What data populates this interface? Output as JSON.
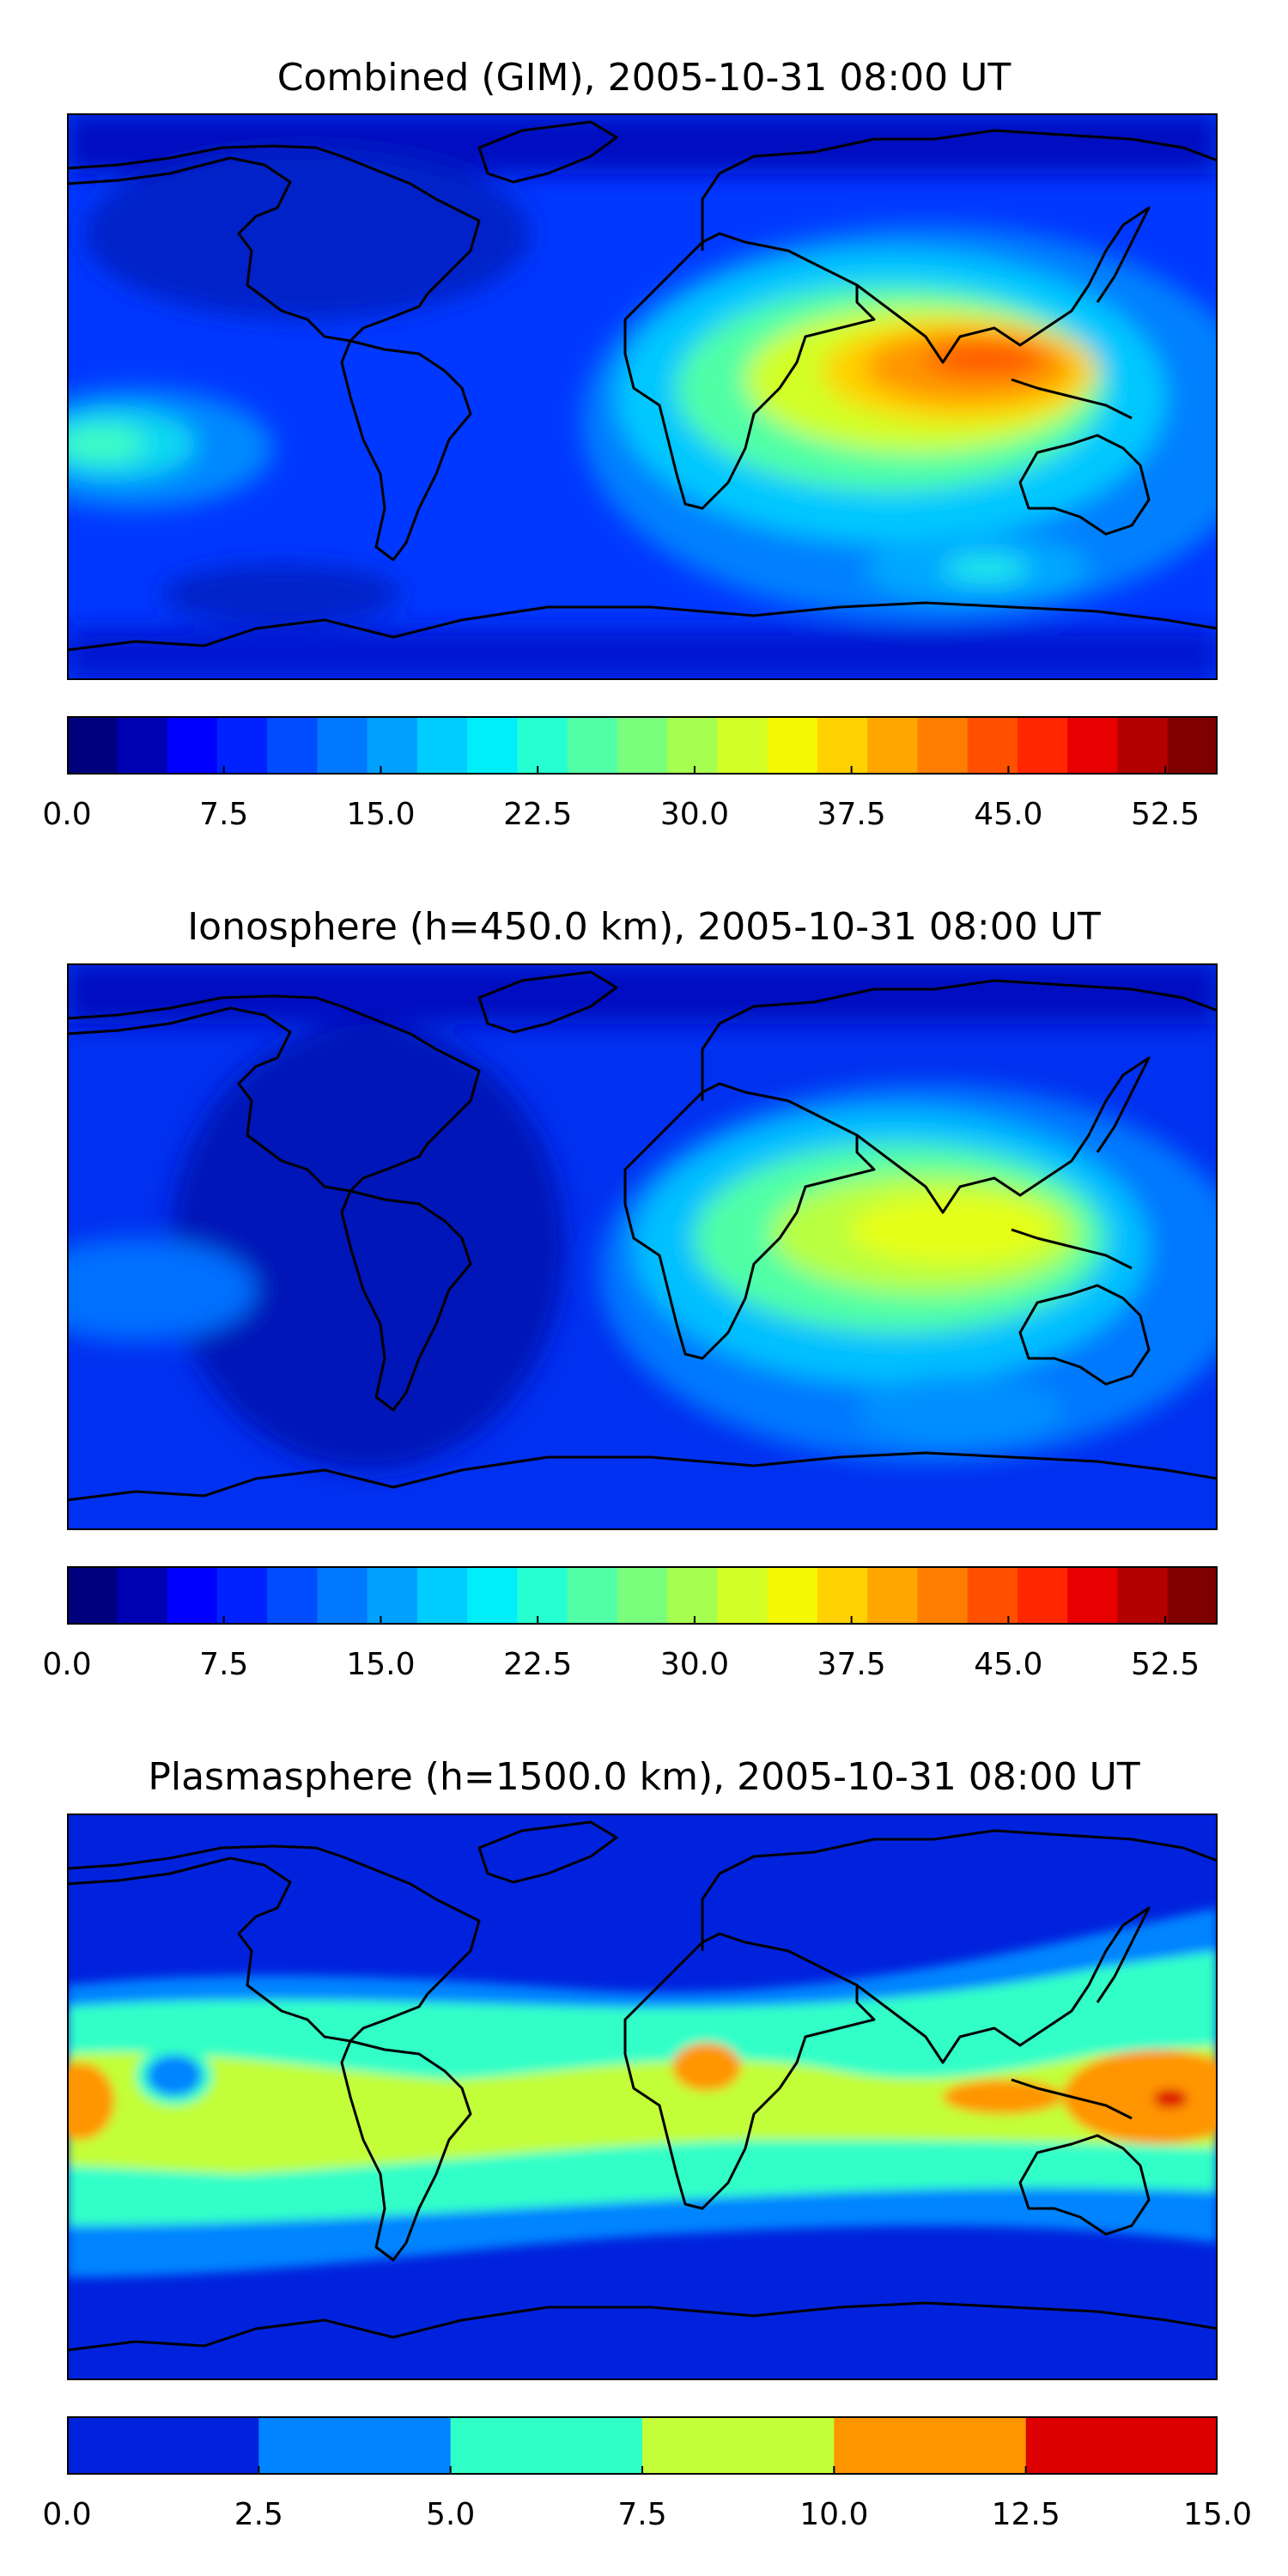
{
  "panels": [
    {
      "title": "Combined (GIM), 2005-10-31 08:00 UT",
      "colorbar": {
        "colors": [
          "#00007f",
          "#0000b3",
          "#0000ff",
          "#0022ff",
          "#004cff",
          "#0078ff",
          "#00a0ff",
          "#00ccff",
          "#00eefa",
          "#26ffd1",
          "#50ffa6",
          "#7aff7d",
          "#a6ff50",
          "#d1ff26",
          "#f4f802",
          "#ffd100",
          "#ffa600",
          "#ff7d00",
          "#ff5000",
          "#ff2600",
          "#e60000",
          "#b30000",
          "#800000"
        ],
        "ticks": [
          "0.0",
          "7.5",
          "15.0",
          "22.5",
          "30.0",
          "37.5",
          "45.0",
          "52.5"
        ],
        "tick_values": [
          0,
          7.5,
          15,
          22.5,
          30,
          37.5,
          45,
          52.5
        ],
        "range": [
          0,
          55
        ]
      }
    },
    {
      "title": "Ionosphere  (h=450.0 km), 2005-10-31 08:00 UT",
      "colorbar": {
        "colors": [
          "#00007f",
          "#0000b3",
          "#0000ff",
          "#0022ff",
          "#004cff",
          "#0078ff",
          "#00a0ff",
          "#00ccff",
          "#00eefa",
          "#26ffd1",
          "#50ffa6",
          "#7aff7d",
          "#a6ff50",
          "#d1ff26",
          "#f4f802",
          "#ffd100",
          "#ffa600",
          "#ff7d00",
          "#ff5000",
          "#ff2600",
          "#e60000",
          "#b30000",
          "#800000"
        ],
        "ticks": [
          "0.0",
          "7.5",
          "15.0",
          "22.5",
          "30.0",
          "37.5",
          "45.0",
          "52.5"
        ],
        "tick_values": [
          0,
          7.5,
          15,
          22.5,
          30,
          37.5,
          45,
          52.5
        ],
        "range": [
          0,
          55
        ]
      }
    },
    {
      "title": "Plasmasphere (h=1500.0 km), 2005-10-31 08:00 UT",
      "colorbar": {
        "colors": [
          "#0022dd",
          "#0084ff",
          "#30ffc8",
          "#c2ff38",
          "#ff9500",
          "#dd0000"
        ],
        "ticks": [
          "0.0",
          "2.5",
          "5.0",
          "7.5",
          "10.0",
          "12.5",
          "15.0"
        ],
        "tick_values": [
          0,
          2.5,
          5,
          7.5,
          10,
          12.5,
          15
        ],
        "range": [
          0,
          15
        ]
      }
    }
  ]
}
